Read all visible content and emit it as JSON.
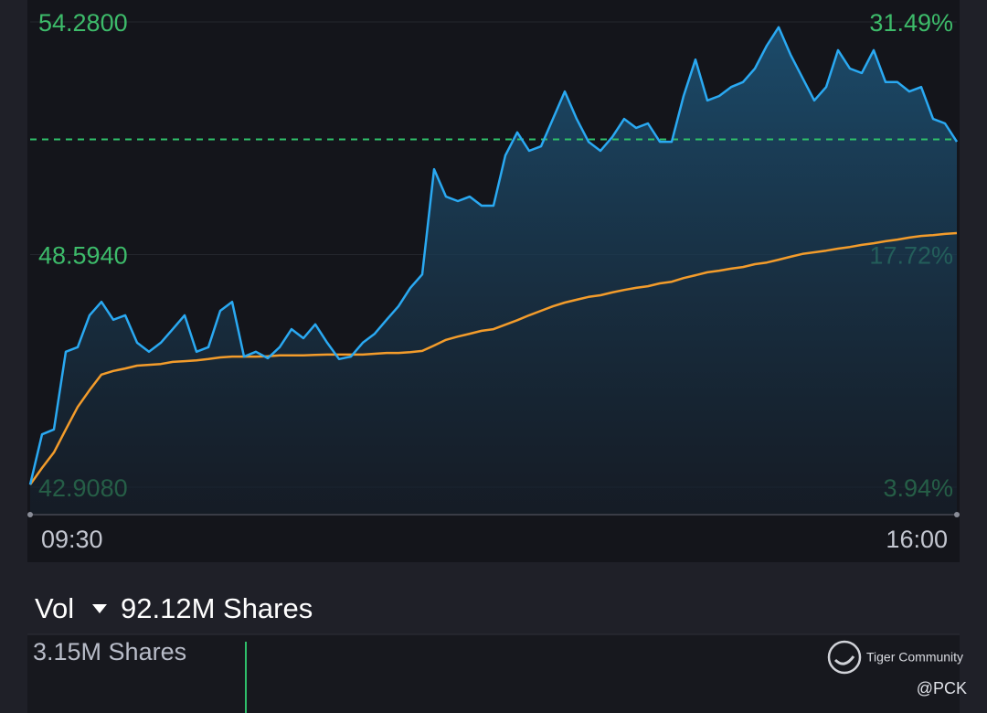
{
  "chart_data": {
    "type": "line",
    "categories": [
      "09:30",
      null,
      null,
      null,
      null,
      null,
      null,
      null,
      null,
      null,
      null,
      null,
      null,
      null,
      null,
      null,
      null,
      null,
      null,
      null,
      null,
      null,
      null,
      null,
      null,
      null,
      null,
      null,
      null,
      null,
      null,
      null,
      null,
      null,
      null,
      null,
      null,
      null,
      null,
      null,
      null,
      null,
      null,
      null,
      null,
      null,
      null,
      null,
      null,
      null,
      null,
      null,
      null,
      null,
      null,
      null,
      null,
      null,
      null,
      null,
      null,
      null,
      null,
      null,
      null,
      null,
      null,
      null,
      null,
      null,
      null,
      null,
      null,
      null,
      null,
      null,
      null,
      null,
      "16:00"
    ],
    "series": [
      {
        "color": "#2aa9f2",
        "area": true,
        "values": [
          42.97,
          44.2,
          44.32,
          46.22,
          46.33,
          47.11,
          47.44,
          47.0,
          47.11,
          46.44,
          46.22,
          46.44,
          46.77,
          47.11,
          46.22,
          46.33,
          47.22,
          47.44,
          46.1,
          46.22,
          46.06,
          46.33,
          46.77,
          46.55,
          46.89,
          46.44,
          46.04,
          46.1,
          46.44,
          46.66,
          47.0,
          47.33,
          47.78,
          48.11,
          50.68,
          50.01,
          49.9,
          50.01,
          49.79,
          49.79,
          51.02,
          51.58,
          51.13,
          51.24,
          51.91,
          52.58,
          51.91,
          51.35,
          51.13,
          51.47,
          51.91,
          51.69,
          51.8,
          51.35,
          51.35,
          52.47,
          53.36,
          52.36,
          52.47,
          52.69,
          52.81,
          53.14,
          53.7,
          54.15,
          53.48,
          52.92,
          52.36,
          52.69,
          53.59,
          53.14,
          53.03,
          53.59,
          52.81,
          52.81,
          52.58,
          52.69,
          51.91,
          51.8,
          51.35
        ]
      },
      {
        "color": "#f39c2b",
        "area": false,
        "values": [
          42.97,
          43.38,
          43.76,
          44.32,
          44.87,
          45.28,
          45.66,
          45.75,
          45.81,
          45.88,
          45.9,
          45.92,
          45.97,
          45.99,
          46.01,
          46.04,
          46.08,
          46.1,
          46.1,
          46.1,
          46.11,
          46.13,
          46.13,
          46.13,
          46.14,
          46.15,
          46.15,
          46.15,
          46.15,
          46.17,
          46.19,
          46.19,
          46.21,
          46.24,
          46.37,
          46.51,
          46.59,
          46.66,
          46.73,
          46.77,
          46.88,
          46.99,
          47.11,
          47.22,
          47.33,
          47.42,
          47.49,
          47.56,
          47.6,
          47.67,
          47.73,
          47.78,
          47.82,
          47.89,
          47.93,
          48.02,
          48.09,
          48.16,
          48.2,
          48.25,
          48.29,
          48.36,
          48.4,
          48.47,
          48.54,
          48.61,
          48.65,
          48.69,
          48.74,
          48.78,
          48.83,
          48.87,
          48.92,
          48.96,
          49.01,
          49.05,
          49.07,
          49.1,
          49.12
        ]
      }
    ],
    "ylim": [
      42.908,
      54.28
    ],
    "yticks": [
      {
        "value": 42.908,
        "label": "42.9080"
      },
      {
        "value": 48.594,
        "label": "48.5940"
      },
      {
        "value": 54.28,
        "label": "54.2800"
      }
    ],
    "y2lim": [
      3.94,
      31.49
    ],
    "y2ticks": [
      {
        "value": 3.94,
        "label": "3.94%"
      },
      {
        "value": 17.72,
        "label": "17.72%"
      },
      {
        "value": 31.49,
        "label": "31.49%"
      }
    ],
    "reference_line": {
      "value": 51.41,
      "color": "#2fbf6a"
    },
    "grid": true
  },
  "volume": {
    "label": "Vol",
    "total": "92.12M Shares",
    "max_label": "3.15M Shares"
  },
  "watermark": {
    "brand": "Tiger Community",
    "user": "@PCK"
  }
}
